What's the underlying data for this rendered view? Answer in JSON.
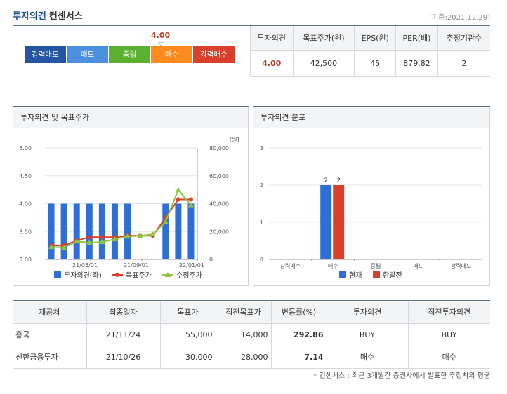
{
  "header": {
    "title_part1": "투자의견",
    "title_part2": "컨센서스",
    "base_date": "[기준:2021.12.29]"
  },
  "scale": {
    "current_value": "4.00",
    "marker": "▽",
    "position_fraction": 0.75,
    "segments": [
      {
        "label": "강력매도",
        "color": "#2456a4"
      },
      {
        "label": "매도",
        "color": "#4a8fe0"
      },
      {
        "label": "중립",
        "color": "#5bb12f"
      },
      {
        "label": "매수",
        "color": "#ff8a1e"
      },
      {
        "label": "강력매수",
        "color": "#d9402b"
      }
    ]
  },
  "summary": {
    "headers": [
      "투자의견",
      "목표주가(원)",
      "EPS(원)",
      "PER(배)",
      "추정기관수"
    ],
    "values": [
      "4.00",
      "42,500",
      "45",
      "879.82",
      "2"
    ]
  },
  "panel1": {
    "title": "투자의견 및 목표주가",
    "unit": "[원]"
  },
  "panel2": {
    "title": "투자의견 분포"
  },
  "colors": {
    "opinion": "#2e6fd6",
    "target": "#d9402b",
    "revised": "#8cc63f",
    "current": "#2e6fd6",
    "prev_month": "#d9402b"
  },
  "chart_data": [
    {
      "type": "bar",
      "x_ticks": [
        "21/05/01",
        "21/09/01",
        "22/01/01"
      ],
      "y_left": {
        "ticks": [
          "5.00",
          "4.50",
          "4.00",
          "3.50",
          "3.00"
        ],
        "lim": [
          3.0,
          5.0
        ]
      },
      "y_right": {
        "ticks": [
          "80,000",
          "60,000",
          "40,000",
          "20,000",
          "0"
        ],
        "lim": [
          0,
          80000
        ]
      },
      "bar_slots": 12,
      "series": [
        {
          "name": "투자의견(좌)",
          "kind": "bar",
          "values": [
            4.0,
            4.0,
            4.0,
            4.0,
            4.0,
            4.0,
            4.0,
            null,
            null,
            4.0,
            4.0,
            4.0
          ]
        },
        {
          "name": "목표주가",
          "kind": "line",
          "values": [
            10000,
            10000,
            13500,
            16000,
            16000,
            16000,
            17000,
            17000,
            17000,
            30000,
            43000,
            43000
          ]
        },
        {
          "name": "수정주가",
          "kind": "line",
          "values": [
            9000,
            8500,
            13000,
            12000,
            12500,
            14500,
            16500,
            17000,
            18000,
            27000,
            50000,
            39000
          ]
        }
      ]
    },
    {
      "type": "bar",
      "categories": [
        "강력매수",
        "매수",
        "중립",
        "매도",
        "강력매도"
      ],
      "ylim": [
        0,
        3
      ],
      "y_ticks": [
        "3",
        "2",
        "1",
        "0"
      ],
      "series": [
        {
          "name": "현재",
          "values": [
            0,
            2,
            0,
            0,
            0
          ]
        },
        {
          "name": "한달전",
          "values": [
            0,
            2,
            0,
            0,
            0
          ]
        }
      ]
    }
  ],
  "brokers": {
    "headers": [
      "제공처",
      "최종일자",
      "목표가",
      "직전목표가",
      "변동률(%)",
      "투자의견",
      "직전투자의견"
    ],
    "rows": [
      [
        "흥국",
        "21/11/24",
        "55,000",
        "14,000",
        "292.86",
        "BUY",
        "BUY"
      ],
      [
        "신한금융투자",
        "21/10/26",
        "30,000",
        "28,000",
        "7.14",
        "매수",
        "매수"
      ]
    ]
  },
  "note": "* 컨센서스 : 최근 3개월간 증권사에서 발표한 추정치의 평균"
}
